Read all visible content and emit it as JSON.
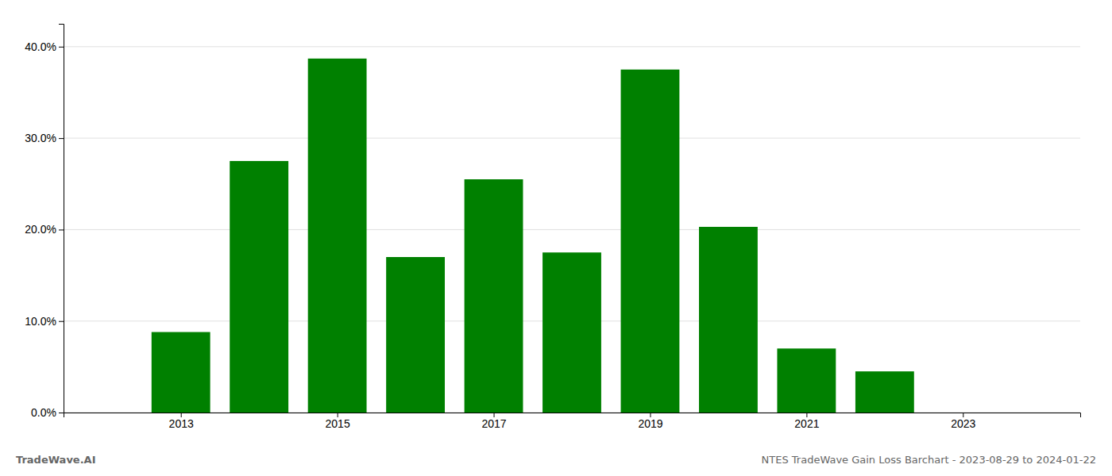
{
  "chart_data": {
    "type": "bar",
    "x": [
      2013,
      2014,
      2015,
      2016,
      2017,
      2018,
      2019,
      2020,
      2021,
      2022,
      2023
    ],
    "values": [
      0.088,
      0.275,
      0.387,
      0.17,
      0.255,
      0.175,
      0.375,
      0.203,
      0.07,
      0.045,
      0.0
    ],
    "color": "#008000",
    "xlim": [
      2011.5,
      2024.5
    ],
    "xticks": [
      2013,
      2015,
      2017,
      2019,
      2021,
      2023
    ],
    "ylim": [
      0.0,
      0.425
    ],
    "yticks": [
      {
        "value": 0.0,
        "label": "0.0%"
      },
      {
        "value": 0.1,
        "label": "10.0%"
      },
      {
        "value": 0.2,
        "label": "20.0%"
      },
      {
        "value": 0.3,
        "label": "30.0%"
      },
      {
        "value": 0.4,
        "label": "40.0%"
      }
    ],
    "grid": true,
    "annotations": [
      "TradeWave.AI",
      "NTES TradeWave Gain Loss Barchart - 2023-08-29 to 2024-01-22"
    ]
  }
}
